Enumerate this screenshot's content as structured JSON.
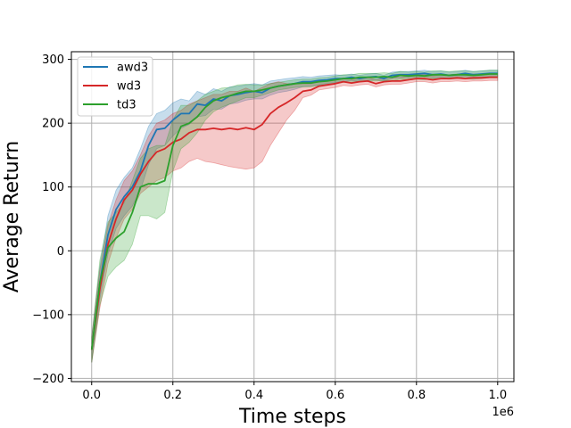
{
  "chart_data": {
    "type": "line",
    "title": "",
    "xlabel": "Time steps",
    "ylabel": "Average Return",
    "x_offset_label": "1e6",
    "xlim": [
      -0.05,
      1.04
    ],
    "ylim": [
      -205,
      312
    ],
    "xticks": [
      0.0,
      0.2,
      0.4,
      0.6,
      0.8,
      1.0
    ],
    "xtick_labels": [
      "0.0",
      "0.2",
      "0.4",
      "0.6",
      "0.8",
      "1.0"
    ],
    "yticks": [
      -200,
      -100,
      0,
      100,
      200,
      300
    ],
    "ytick_labels": [
      "−200",
      "−100",
      "0",
      "100",
      "200",
      "300"
    ],
    "grid": true,
    "legend_position": "top-left",
    "x": [
      0.0,
      0.02,
      0.04,
      0.06,
      0.08,
      0.1,
      0.12,
      0.14,
      0.16,
      0.18,
      0.2,
      0.22,
      0.24,
      0.26,
      0.28,
      0.3,
      0.32,
      0.34,
      0.36,
      0.38,
      0.4,
      0.42,
      0.44,
      0.46,
      0.48,
      0.5,
      0.52,
      0.54,
      0.56,
      0.58,
      0.6,
      0.62,
      0.64,
      0.66,
      0.68,
      0.7,
      0.72,
      0.74,
      0.76,
      0.78,
      0.8,
      0.82,
      0.84,
      0.86,
      0.88,
      0.9,
      0.92,
      0.94,
      0.96,
      0.98,
      1.0
    ],
    "series": [
      {
        "name": "awd3",
        "color": "#1f77b4",
        "mean": [
          -155,
          -50,
          25,
          65,
          85,
          100,
          125,
          165,
          190,
          192,
          205,
          215,
          215,
          230,
          228,
          238,
          235,
          243,
          245,
          248,
          250,
          248,
          255,
          258,
          260,
          262,
          265,
          265,
          267,
          268,
          270,
          270,
          272,
          270,
          272,
          273,
          270,
          275,
          276,
          276,
          277,
          278,
          276,
          277,
          275,
          276,
          278,
          276,
          277,
          278,
          278
        ],
        "lower": [
          -175,
          -75,
          -5,
          35,
          55,
          70,
          95,
          135,
          160,
          165,
          180,
          192,
          198,
          210,
          212,
          222,
          222,
          230,
          232,
          236,
          238,
          238,
          244,
          248,
          250,
          253,
          257,
          258,
          260,
          262,
          264,
          265,
          267,
          265,
          267,
          268,
          266,
          270,
          271,
          271,
          272,
          273,
          271,
          272,
          270,
          271,
          273,
          271,
          272,
          273,
          273
        ],
        "upper": [
          -135,
          -25,
          55,
          95,
          115,
          130,
          160,
          195,
          215,
          220,
          232,
          238,
          235,
          250,
          245,
          254,
          250,
          257,
          258,
          260,
          262,
          260,
          266,
          268,
          270,
          271,
          273,
          272,
          274,
          275,
          276,
          275,
          277,
          275,
          277,
          278,
          275,
          280,
          281,
          281,
          282,
          283,
          281,
          282,
          280,
          281,
          283,
          281,
          282,
          283,
          283
        ]
      },
      {
        "name": "wd3",
        "color": "#d62728",
        "mean": [
          -155,
          -60,
          10,
          50,
          80,
          95,
          120,
          140,
          155,
          160,
          170,
          175,
          185,
          190,
          190,
          192,
          190,
          192,
          190,
          193,
          190,
          198,
          215,
          225,
          232,
          240,
          250,
          252,
          258,
          260,
          262,
          265,
          263,
          265,
          266,
          262,
          265,
          266,
          266,
          268,
          270,
          270,
          268,
          270,
          270,
          271,
          270,
          271,
          271,
          272,
          272
        ],
        "lower": [
          -175,
          -90,
          -20,
          20,
          50,
          65,
          90,
          100,
          110,
          115,
          125,
          130,
          140,
          145,
          140,
          138,
          135,
          132,
          130,
          128,
          130,
          140,
          165,
          185,
          205,
          220,
          240,
          244,
          252,
          254,
          256,
          259,
          258,
          260,
          261,
          257,
          260,
          261,
          261,
          263,
          265,
          265,
          263,
          265,
          265,
          266,
          265,
          266,
          266,
          267,
          267
        ],
        "upper": [
          -135,
          -30,
          40,
          80,
          110,
          125,
          150,
          180,
          200,
          205,
          215,
          220,
          230,
          235,
          240,
          245,
          245,
          250,
          250,
          255,
          250,
          256,
          262,
          265,
          262,
          262,
          262,
          262,
          266,
          267,
          268,
          271,
          269,
          271,
          272,
          268,
          271,
          272,
          272,
          274,
          276,
          276,
          274,
          276,
          276,
          277,
          276,
          277,
          277,
          278,
          278
        ]
      },
      {
        "name": "td3",
        "color": "#2ca02c",
        "mean": [
          -155,
          -50,
          5,
          20,
          30,
          60,
          100,
          105,
          105,
          110,
          165,
          195,
          200,
          210,
          225,
          235,
          240,
          243,
          247,
          250,
          250,
          252,
          255,
          258,
          260,
          262,
          263,
          263,
          265,
          266,
          268,
          270,
          270,
          272,
          272,
          272,
          273,
          272,
          275,
          274,
          275,
          274,
          276,
          276,
          275,
          276,
          276,
          275,
          276,
          277,
          277
        ],
        "lower": [
          -175,
          -85,
          -40,
          -25,
          -15,
          10,
          55,
          55,
          50,
          60,
          125,
          160,
          170,
          185,
          205,
          218,
          225,
          230,
          235,
          240,
          240,
          244,
          248,
          252,
          254,
          256,
          257,
          257,
          259,
          260,
          262,
          264,
          264,
          266,
          266,
          266,
          267,
          266,
          269,
          268,
          269,
          268,
          270,
          270,
          269,
          270,
          270,
          269,
          270,
          271,
          271
        ],
        "upper": [
          -135,
          -15,
          45,
          60,
          75,
          110,
          145,
          160,
          165,
          165,
          205,
          228,
          228,
          235,
          245,
          250,
          255,
          256,
          260,
          261,
          260,
          260,
          262,
          264,
          266,
          268,
          269,
          269,
          271,
          272,
          274,
          276,
          276,
          278,
          278,
          278,
          279,
          278,
          281,
          280,
          281,
          280,
          282,
          282,
          281,
          282,
          282,
          281,
          282,
          283,
          283
        ]
      }
    ]
  }
}
